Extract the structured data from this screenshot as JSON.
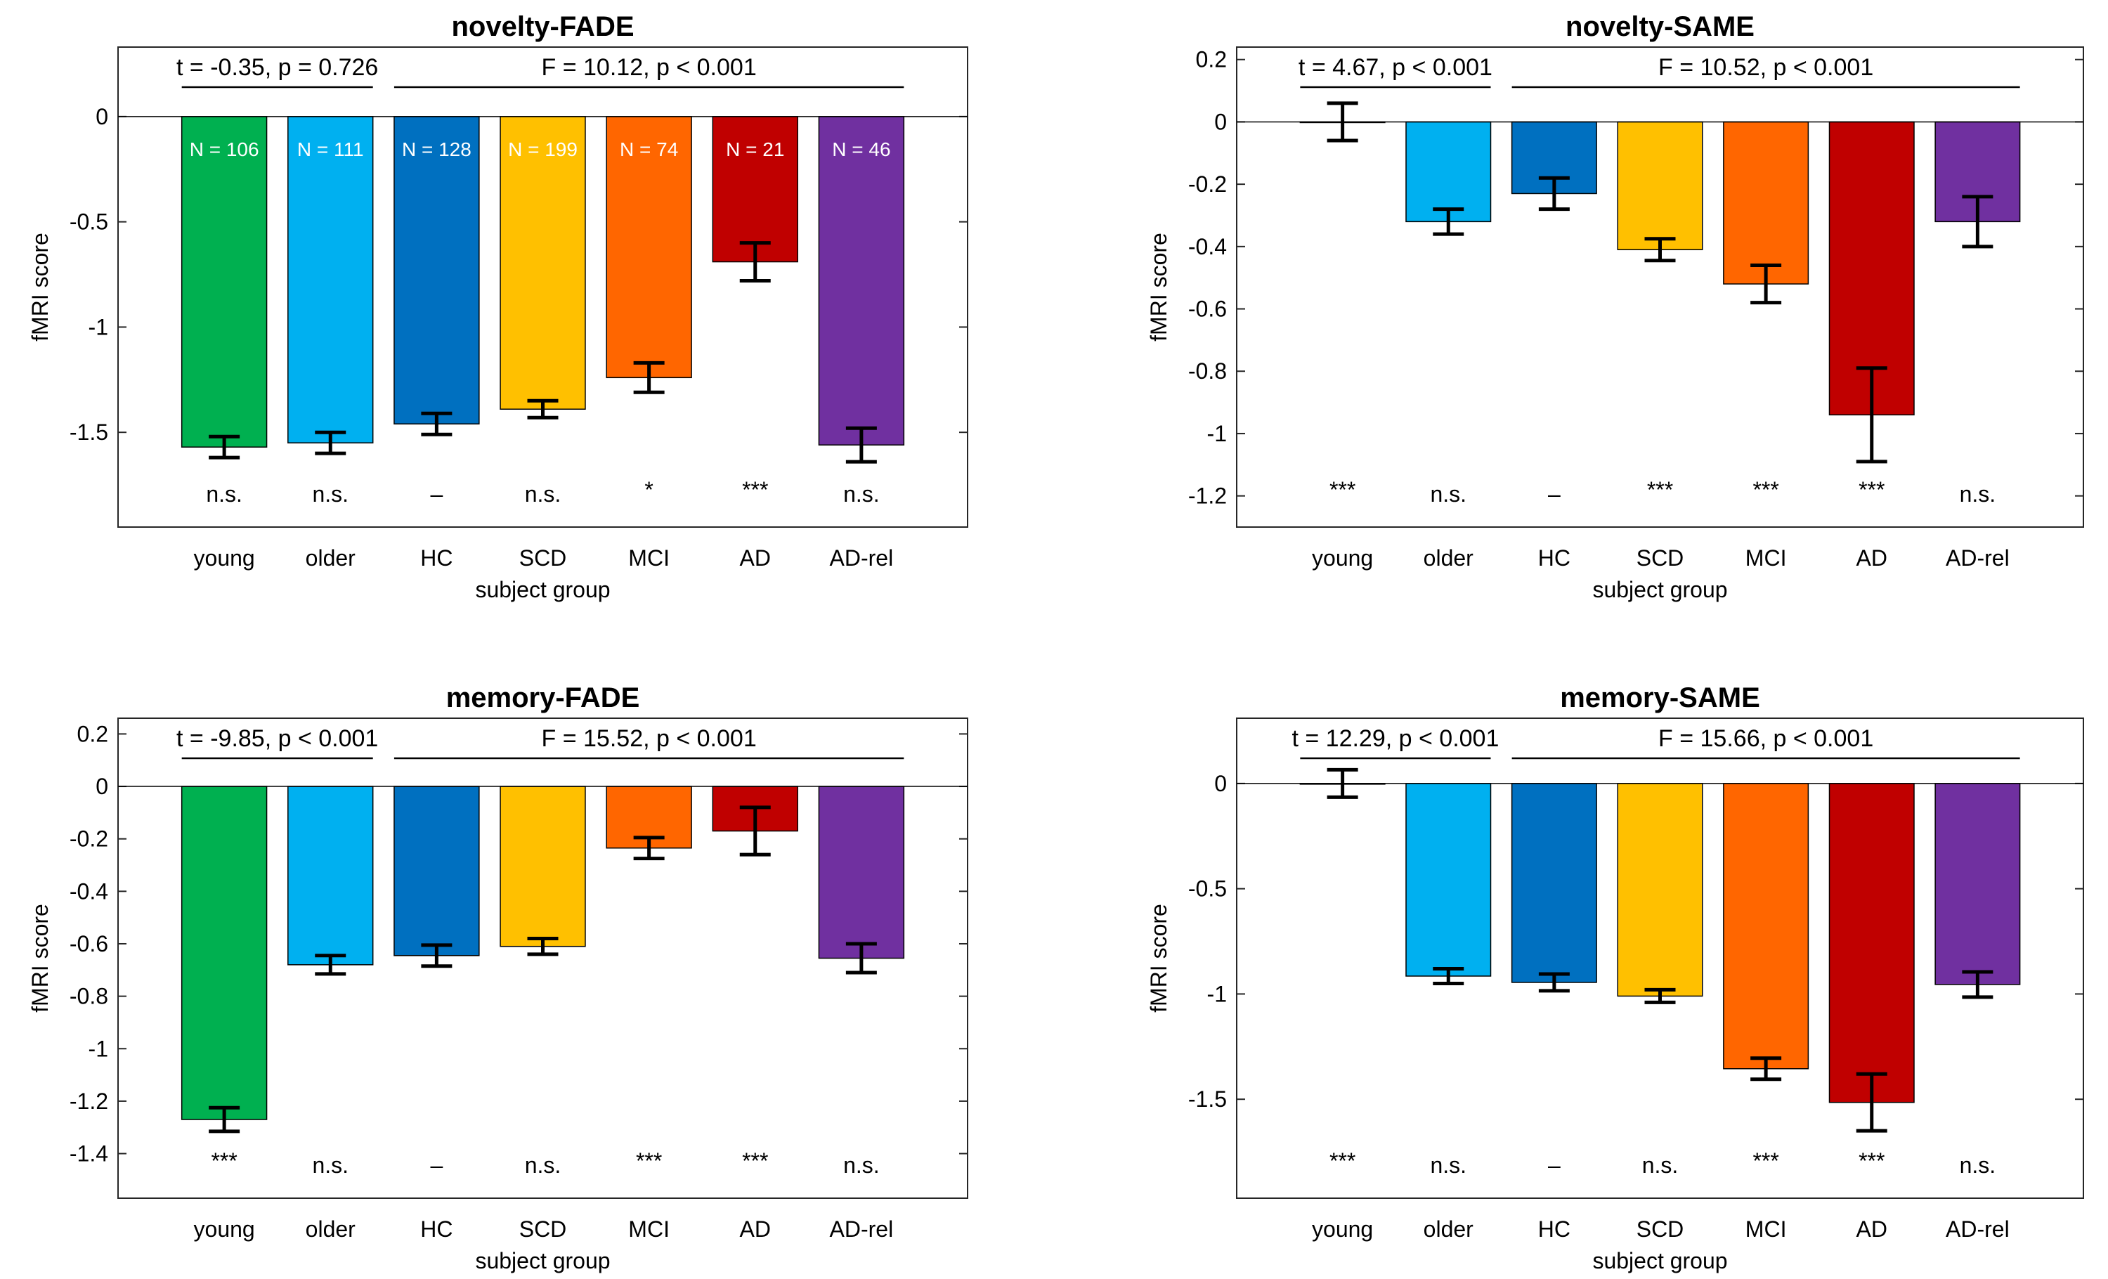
{
  "colors": {
    "young": "#00B050",
    "older": "#00B0F0",
    "HC": "#0070C0",
    "SCD": "#FFC000",
    "MCI": "#FF6600",
    "AD": "#C00000",
    "AD-rel": "#7030A0"
  },
  "chart_data": [
    {
      "type": "bar",
      "title": "novelty-FADE",
      "xlabel": "subject group",
      "ylabel": "fMRI score",
      "categories": [
        "young",
        "older",
        "HC",
        "SCD",
        "MCI",
        "AD",
        "AD-rel"
      ],
      "values": [
        -1.57,
        -1.55,
        -1.46,
        -1.39,
        -1.24,
        -0.69,
        -1.56
      ],
      "errors": [
        0.05,
        0.05,
        0.05,
        0.04,
        0.07,
        0.09,
        0.08
      ],
      "n_labels": [
        "N = 106",
        "N = 111",
        "N = 128",
        "N = 199",
        "N = 74",
        "N = 21",
        "N = 46"
      ],
      "significance": [
        "n.s.",
        "n.s.",
        "–",
        "n.s.",
        "*",
        "***",
        "n.s."
      ],
      "ylim": [
        -1.95,
        0.33
      ],
      "yticks": [
        0,
        -0.5,
        -1,
        -1.5
      ],
      "ytick_labels": [
        "0",
        "-0.5",
        "-1",
        "-1.5"
      ],
      "t_test": "t = -0.35, p = 0.726",
      "f_test": "F = 10.12, p < 0.001",
      "grid": false
    },
    {
      "type": "bar",
      "title": "novelty-SAME",
      "xlabel": "subject group",
      "ylabel": "fMRI score",
      "categories": [
        "young",
        "older",
        "HC",
        "SCD",
        "MCI",
        "AD",
        "AD-rel"
      ],
      "values": [
        0.0,
        -0.32,
        -0.23,
        -0.41,
        -0.52,
        -0.94,
        -0.32
      ],
      "errors": [
        0.06,
        0.04,
        0.05,
        0.035,
        0.06,
        0.15,
        0.08
      ],
      "significance": [
        "***",
        "n.s.",
        "–",
        "***",
        "***",
        "***",
        "n.s."
      ],
      "ylim": [
        -1.3,
        0.24
      ],
      "yticks": [
        0.2,
        0,
        -0.2,
        -0.4,
        -0.6,
        -0.8,
        -1,
        -1.2
      ],
      "ytick_labels": [
        "0.2",
        "0",
        "-0.2",
        "-0.4",
        "-0.6",
        "-0.8",
        "-1",
        "-1.2"
      ],
      "t_test": "t = 4.67, p < 0.001",
      "f_test": "F = 10.52, p < 0.001",
      "grid": false
    },
    {
      "type": "bar",
      "title": "memory-FADE",
      "xlabel": "subject group",
      "ylabel": "fMRI score",
      "categories": [
        "young",
        "older",
        "HC",
        "SCD",
        "MCI",
        "AD",
        "AD-rel"
      ],
      "values": [
        -1.27,
        -0.68,
        -0.645,
        -0.61,
        -0.235,
        -0.17,
        -0.655
      ],
      "errors": [
        0.045,
        0.035,
        0.04,
        0.03,
        0.04,
        0.09,
        0.055
      ],
      "significance": [
        "***",
        "n.s.",
        "–",
        "n.s.",
        "***",
        "***",
        "n.s."
      ],
      "ylim": [
        -1.57,
        0.26
      ],
      "yticks": [
        0.2,
        0,
        -0.2,
        -0.4,
        -0.6,
        -0.8,
        -1,
        -1.2,
        -1.4
      ],
      "ytick_labels": [
        "0.2",
        "0",
        "-0.2",
        "-0.4",
        "-0.6",
        "-0.8",
        "-1",
        "-1.2",
        "-1.4"
      ],
      "t_test": "t = -9.85, p < 0.001",
      "f_test": "F = 15.52, p < 0.001",
      "grid": false
    },
    {
      "type": "bar",
      "title": "memory-SAME",
      "xlabel": "subject group",
      "ylabel": "fMRI score",
      "categories": [
        "young",
        "older",
        "HC",
        "SCD",
        "MCI",
        "AD",
        "AD-rel"
      ],
      "values": [
        0.0,
        -0.915,
        -0.945,
        -1.01,
        -1.355,
        -1.515,
        -0.955
      ],
      "errors": [
        0.065,
        0.035,
        0.04,
        0.03,
        0.05,
        0.135,
        0.06
      ],
      "significance": [
        "***",
        "n.s.",
        "–",
        "n.s.",
        "***",
        "***",
        "n.s."
      ],
      "ylim": [
        -1.97,
        0.31
      ],
      "yticks": [
        0,
        -0.5,
        -1,
        -1.5
      ],
      "ytick_labels": [
        "0",
        "-0.5",
        "-1",
        "-1.5"
      ],
      "t_test": "t = 12.29, p < 0.001",
      "f_test": "F = 15.66, p < 0.001",
      "grid": false
    }
  ]
}
